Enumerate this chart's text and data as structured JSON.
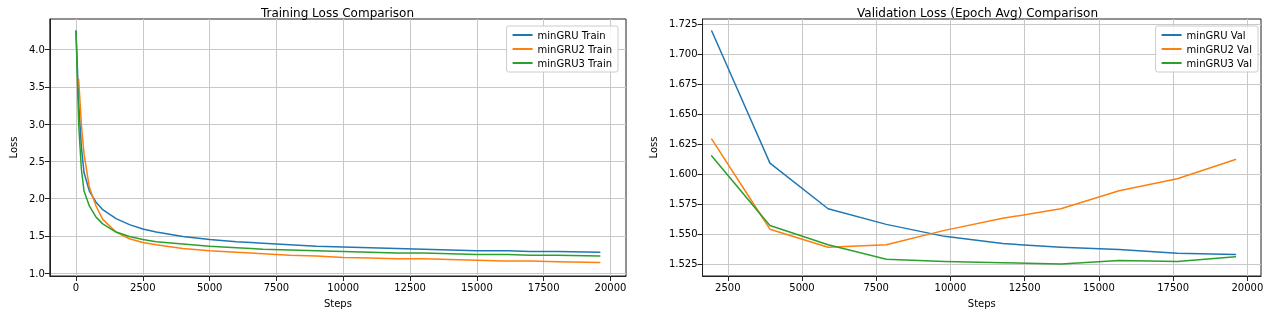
{
  "chart_data": [
    {
      "type": "line",
      "title": "Training Loss Comparison",
      "xlabel": "Steps",
      "ylabel": "Loss",
      "x": [
        0,
        100,
        200,
        300,
        500,
        750,
        1000,
        1500,
        2000,
        2500,
        3000,
        4000,
        5000,
        6000,
        7000,
        8000,
        9000,
        10000,
        11000,
        12000,
        13000,
        14000,
        15000,
        16000,
        17000,
        18000,
        19600
      ],
      "series": [
        {
          "name": "minGRU Train",
          "color": "#1f77b4",
          "values": [
            4.25,
            3.3,
            2.7,
            2.35,
            2.1,
            1.95,
            1.85,
            1.73,
            1.65,
            1.59,
            1.55,
            1.49,
            1.45,
            1.42,
            1.4,
            1.38,
            1.36,
            1.35,
            1.34,
            1.33,
            1.32,
            1.31,
            1.3,
            1.3,
            1.29,
            1.29,
            1.28
          ]
        },
        {
          "name": "minGRU2 Train",
          "color": "#ff7f0e",
          "values": [
            null,
            3.6,
            3.0,
            2.6,
            2.15,
            1.9,
            1.72,
            1.55,
            1.46,
            1.41,
            1.38,
            1.33,
            1.3,
            1.28,
            1.26,
            1.24,
            1.23,
            1.21,
            1.2,
            1.19,
            1.19,
            1.18,
            1.17,
            1.16,
            1.16,
            1.15,
            1.14
          ]
        },
        {
          "name": "minGRU3 Train",
          "color": "#2ca02c",
          "values": [
            4.25,
            3.0,
            2.4,
            2.1,
            1.9,
            1.75,
            1.66,
            1.55,
            1.49,
            1.45,
            1.42,
            1.39,
            1.36,
            1.34,
            1.32,
            1.31,
            1.3,
            1.29,
            1.28,
            1.27,
            1.27,
            1.26,
            1.25,
            1.25,
            1.24,
            1.24,
            1.23
          ]
        }
      ],
      "xlim": [
        -980,
        20580
      ],
      "xticks": [
        0,
        2500,
        5000,
        7500,
        10000,
        12500,
        15000,
        17500,
        20000
      ],
      "ylim": [
        0.96,
        4.41
      ],
      "yticks": [
        {
          "value": 1,
          "label": "1.0"
        },
        {
          "value": 1.5,
          "label": "1.5"
        },
        {
          "value": 2,
          "label": "2.0"
        },
        {
          "value": 2.5,
          "label": "2.5"
        },
        {
          "value": 3,
          "label": "3.0"
        },
        {
          "value": 3.5,
          "label": "3.5"
        },
        {
          "value": 4,
          "label": "4.0"
        }
      ],
      "grid": true,
      "legend": "top right",
      "marker": "none",
      "line_style": "solid"
    },
    {
      "type": "line",
      "title": "Validation Loss (Epoch Avg) Comparison",
      "xlabel": "Steps",
      "ylabel": "Loss",
      "x": [
        1960,
        3920,
        5880,
        7840,
        9800,
        11760,
        13720,
        15680,
        17640,
        19600
      ],
      "series": [
        {
          "name": "minGRU Val",
          "color": "#1f77b4",
          "values": [
            1.719,
            1.609,
            1.571,
            1.558,
            1.548,
            1.542,
            1.539,
            1.537,
            1.534,
            1.533
          ]
        },
        {
          "name": "minGRU2 Val",
          "color": "#ff7f0e",
          "values": [
            1.629,
            1.554,
            1.539,
            1.541,
            1.553,
            1.563,
            1.571,
            1.586,
            1.596,
            1.612
          ]
        },
        {
          "name": "minGRU3 Val",
          "color": "#2ca02c",
          "values": [
            1.615,
            1.557,
            1.541,
            1.529,
            1.527,
            1.526,
            1.525,
            1.528,
            1.527,
            1.531
          ]
        }
      ],
      "xlim": [
        1650,
        20460
      ],
      "xticks": [
        2500,
        5000,
        7500,
        10000,
        12500,
        15000,
        17500,
        20000
      ],
      "ylim": [
        1.515,
        1.729
      ],
      "yticks": [
        1.525,
        {
          "value": 1.55,
          "label": "1.550"
        },
        1.575,
        {
          "value": 1.6,
          "label": "1.600"
        },
        1.625,
        {
          "value": 1.65,
          "label": "1.650"
        },
        1.675,
        {
          "value": 1.7,
          "label": "1.700"
        },
        1.725
      ],
      "grid": true,
      "legend": "top right",
      "marker": "none",
      "line_style": "solid"
    }
  ]
}
